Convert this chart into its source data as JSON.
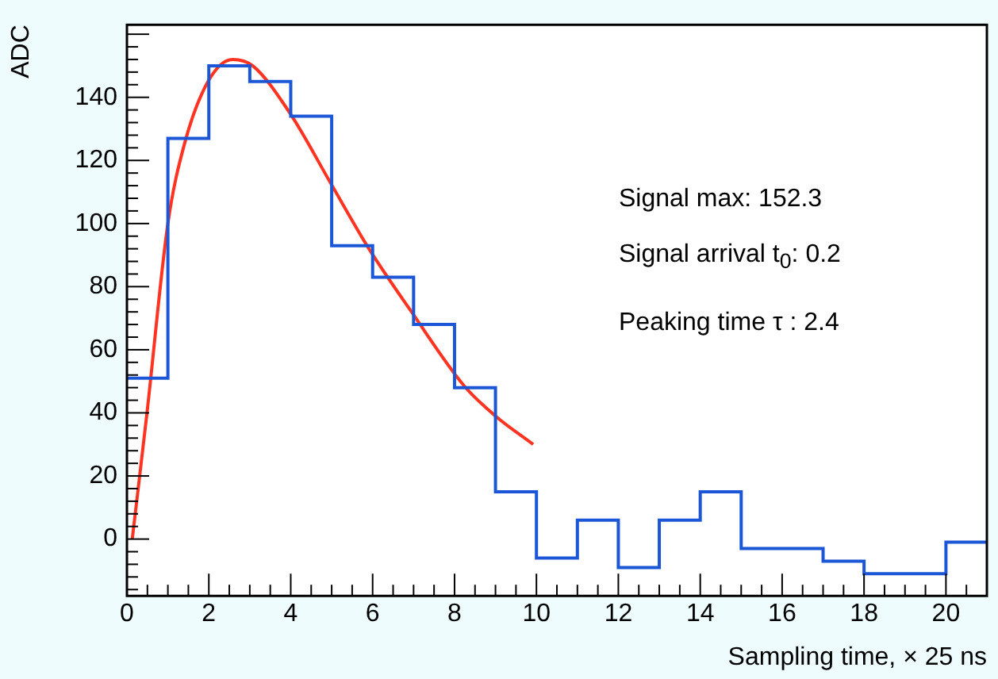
{
  "chart_data": {
    "type": "histogram",
    "xlabel": "Sampling time, × 25 ns",
    "ylabel": "ADC",
    "bins": [
      0,
      1,
      2,
      3,
      4,
      5,
      6,
      7,
      8,
      9,
      10,
      11,
      12,
      13,
      14,
      15,
      16,
      17,
      18,
      19,
      20,
      21
    ],
    "values": [
      51,
      127,
      150,
      145,
      134,
      93,
      83,
      68,
      48,
      15,
      -6,
      6,
      -9,
      6,
      15,
      -3,
      -3,
      -7,
      -11,
      -11,
      -1
    ],
    "color": "#1a56d6",
    "series": [
      {
        "type": "line",
        "color": "#ff3322",
        "x": [
          0.13,
          0.49,
          1.0,
          1.4,
          1.98,
          2.58,
          3.07,
          3.98,
          5.01,
          5.91,
          6.95,
          8.24,
          9.0,
          9.92
        ],
        "values": [
          0,
          40,
          100,
          125,
          145,
          152,
          150,
          135,
          112,
          92,
          72,
          48.5,
          39,
          30
        ]
      }
    ],
    "xlim": [
      0,
      21
    ],
    "ylim": [
      -18,
      163
    ],
    "xticks": [
      0,
      2,
      4,
      6,
      8,
      10,
      12,
      14,
      16,
      18,
      20
    ],
    "yticks": [
      0,
      20,
      40,
      60,
      80,
      100,
      120,
      140
    ],
    "grid": false,
    "legend": false,
    "annotations": [
      "Signal max: 152.3",
      "Signal arrival t$_{0}$:  0.2",
      "Peaking time τ :  2.4"
    ]
  }
}
